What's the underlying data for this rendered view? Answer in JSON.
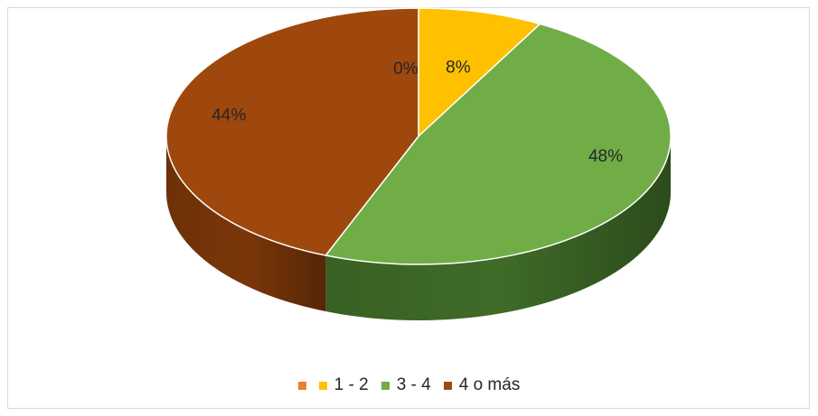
{
  "chart_data": {
    "type": "pie",
    "title": "",
    "legend_position": "bottom",
    "categories": [
      "",
      "1 - 2",
      "3 - 4",
      "4 o más"
    ],
    "values": [
      0,
      8,
      48,
      44
    ],
    "labels": [
      "0%",
      "8%",
      "48%",
      "44%"
    ],
    "colors": [
      "#ED7D31",
      "#FFC000",
      "#70AD47",
      "#9E480E"
    ],
    "side_colors": [
      "#B85E22",
      "#C49400",
      "#3F6B27",
      "#7A3609"
    ]
  }
}
